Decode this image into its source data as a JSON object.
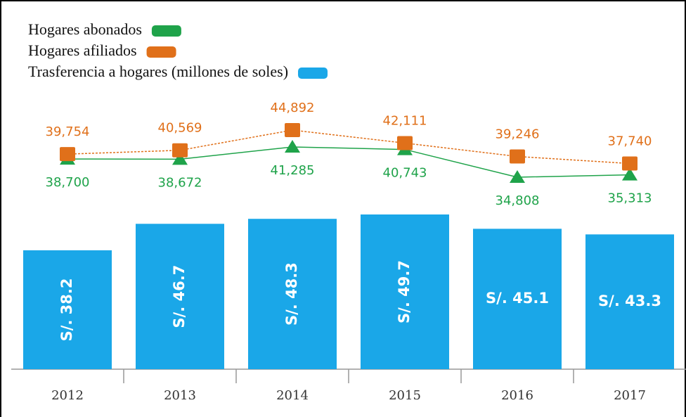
{
  "chart_data": {
    "type": "bar",
    "categories": [
      "2012",
      "2013",
      "2014",
      "2015",
      "2016",
      "2017"
    ],
    "series": [
      {
        "name": "Hogares abonados",
        "color": "#1fa34a",
        "type": "line",
        "values": [
          38700,
          38672,
          41285,
          40743,
          34808,
          35313
        ],
        "value_labels": [
          "38,700",
          "38,672",
          "41,285",
          "40,743",
          "34,808",
          "35,313"
        ]
      },
      {
        "name": "Hogares afiliados",
        "color": "#e0701a",
        "type": "line",
        "values": [
          39754,
          40569,
          44892,
          42111,
          39246,
          37740
        ],
        "value_labels": [
          "39,754",
          "40,569",
          "44,892",
          "42,111",
          "39,246",
          "37,740"
        ]
      },
      {
        "name": "Trasferencia a hogares (millones de soles)",
        "color": "#1aa7e8",
        "type": "bar",
        "values": [
          38.2,
          46.7,
          48.3,
          49.7,
          45.1,
          43.3
        ],
        "value_labels": [
          "S/. 38.2",
          "S/. 46.7",
          "S/. 48.3",
          "S/. 49.7",
          "S/. 45.1",
          "S/. 43.3"
        ]
      }
    ]
  }
}
